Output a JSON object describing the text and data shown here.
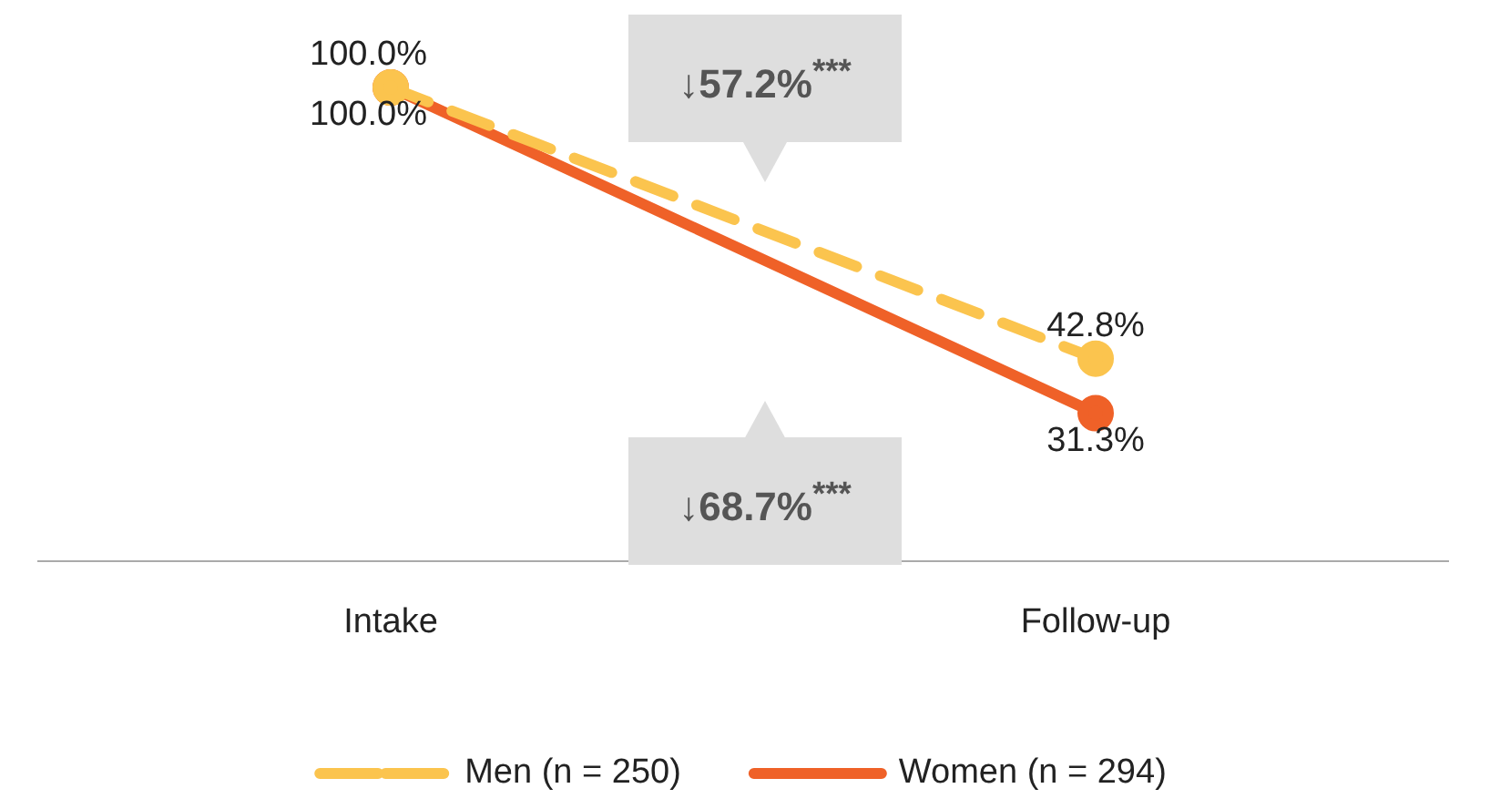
{
  "chart_data": {
    "type": "line",
    "categories": [
      "Intake",
      "Follow-up"
    ],
    "series": [
      {
        "name": "Men (n = 250)",
        "color": "#fbc44e",
        "values": [
          100.0,
          42.8
        ],
        "value_labels": [
          "100.0%",
          "42.8%"
        ],
        "line_style": "dashed"
      },
      {
        "name": "Women (n = 294)",
        "color": "#ef6128",
        "values": [
          100.0,
          31.3
        ],
        "value_labels": [
          "100.0%",
          "31.3%"
        ],
        "line_style": "solid"
      }
    ],
    "annotations": [
      "↓57.2%$^{***}$",
      "↓68.7%$^{***}$"
    ],
    "marker": "circle",
    "legend": "bottom",
    "tick_labels": "x",
    "grid": false
  }
}
